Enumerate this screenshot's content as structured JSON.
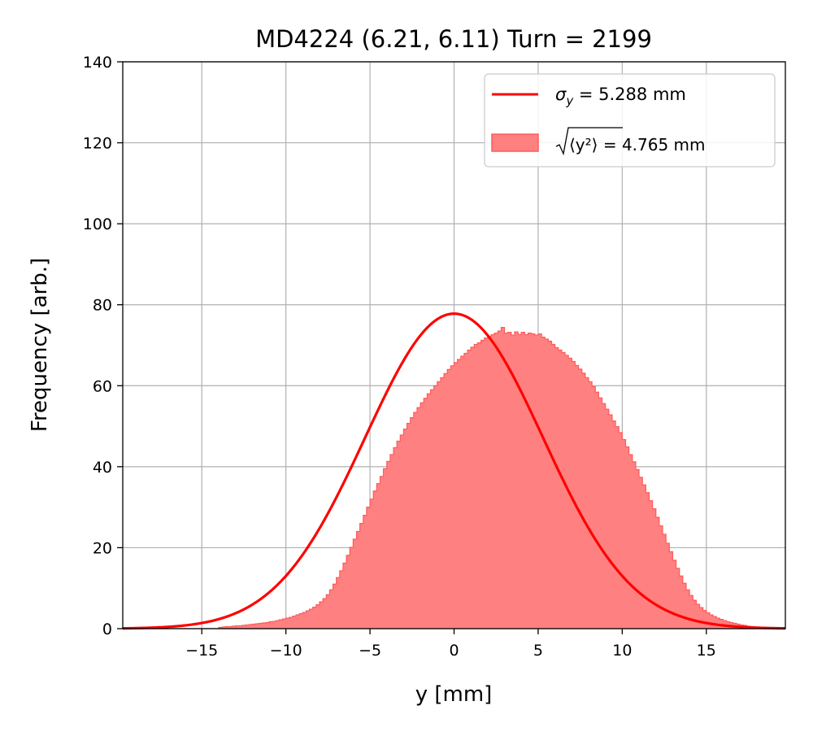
{
  "chart_data": {
    "type": "histogram",
    "title": "MD4224 (6.21, 6.11) Turn = 2199",
    "xlabel": "y [mm]",
    "ylabel": "Frequency [arb.]",
    "xlim": [
      -19.7,
      19.7
    ],
    "ylim": [
      0,
      140
    ],
    "xticks": [
      -15,
      -10,
      -5,
      0,
      5,
      10,
      15
    ],
    "yticks": [
      0,
      20,
      40,
      60,
      80,
      100,
      120,
      140
    ],
    "grid": true,
    "legend_position": "upper right",
    "legend": {
      "line_label_sigma": "σ",
      "line_label_sub": "y",
      "line_label_rest": " = 5.288 mm",
      "hist_label_inner": "⟨y²⟩",
      "hist_label_rest": " = 4.765 mm"
    },
    "series": [
      {
        "kind": "line",
        "description": "Gaussian fit",
        "sigma": 5.288,
        "mean": 0,
        "peak": 77.8,
        "color": "#ff0000"
      },
      {
        "kind": "histogram",
        "rms": 4.765,
        "color": "#ff8080",
        "edge_color": "#ff5a5a",
        "bin_width": 0.2,
        "bin_start": -14,
        "values": [
          0.3,
          0.4,
          0.5,
          0.5,
          0.6,
          0.7,
          0.7,
          0.8,
          0.9,
          1.0,
          1.1,
          1.2,
          1.3,
          1.4,
          1.5,
          1.7,
          1.8,
          2.0,
          2.2,
          2.4,
          2.6,
          2.8,
          3.1,
          3.4,
          3.7,
          4.0,
          4.4,
          4.8,
          5.3,
          5.9,
          6.6,
          7.4,
          8.4,
          9.6,
          11.0,
          12.6,
          14.3,
          16.2,
          18.1,
          20.1,
          22.1,
          24.0,
          26.0,
          28.0,
          30.0,
          32.0,
          34.0,
          35.8,
          37.6,
          39.5,
          41.3,
          43.0,
          44.7,
          46.3,
          47.8,
          49.3,
          50.7,
          52.1,
          53.4,
          54.6,
          55.8,
          56.9,
          58.0,
          59.0,
          60.0,
          61.0,
          62.0,
          63.0,
          64.0,
          64.9,
          65.7,
          66.5,
          67.3,
          68.0,
          68.8,
          69.5,
          70.2,
          70.6,
          71.2,
          71.8,
          72.2,
          72.6,
          73.0,
          73.5,
          74.4,
          73.0,
          73.2,
          72.5,
          73.3,
          72.7,
          73.2,
          72.6,
          73.0,
          72.8,
          72.5,
          72.8,
          72.0,
          71.5,
          71.0,
          70.2,
          69.4,
          68.8,
          68.2,
          67.5,
          66.8,
          66.0,
          65.0,
          64.1,
          63.1,
          62.0,
          61.0,
          59.8,
          58.4,
          57.0,
          55.6,
          54.2,
          52.8,
          51.3,
          49.9,
          48.4,
          46.7,
          44.9,
          43.0,
          41.2,
          39.3,
          37.4,
          35.5,
          33.6,
          31.6,
          29.6,
          27.5,
          25.4,
          23.3,
          21.1,
          19.0,
          16.9,
          14.9,
          13.0,
          11.2,
          9.6,
          8.2,
          7.0,
          6.0,
          5.2,
          4.5,
          3.9,
          3.4,
          3.0,
          2.6,
          2.3,
          2.0,
          1.7,
          1.5,
          1.3,
          1.1,
          0.9,
          0.8,
          0.6,
          0.5,
          0.4,
          0.3,
          0.2,
          0.1
        ]
      }
    ]
  }
}
